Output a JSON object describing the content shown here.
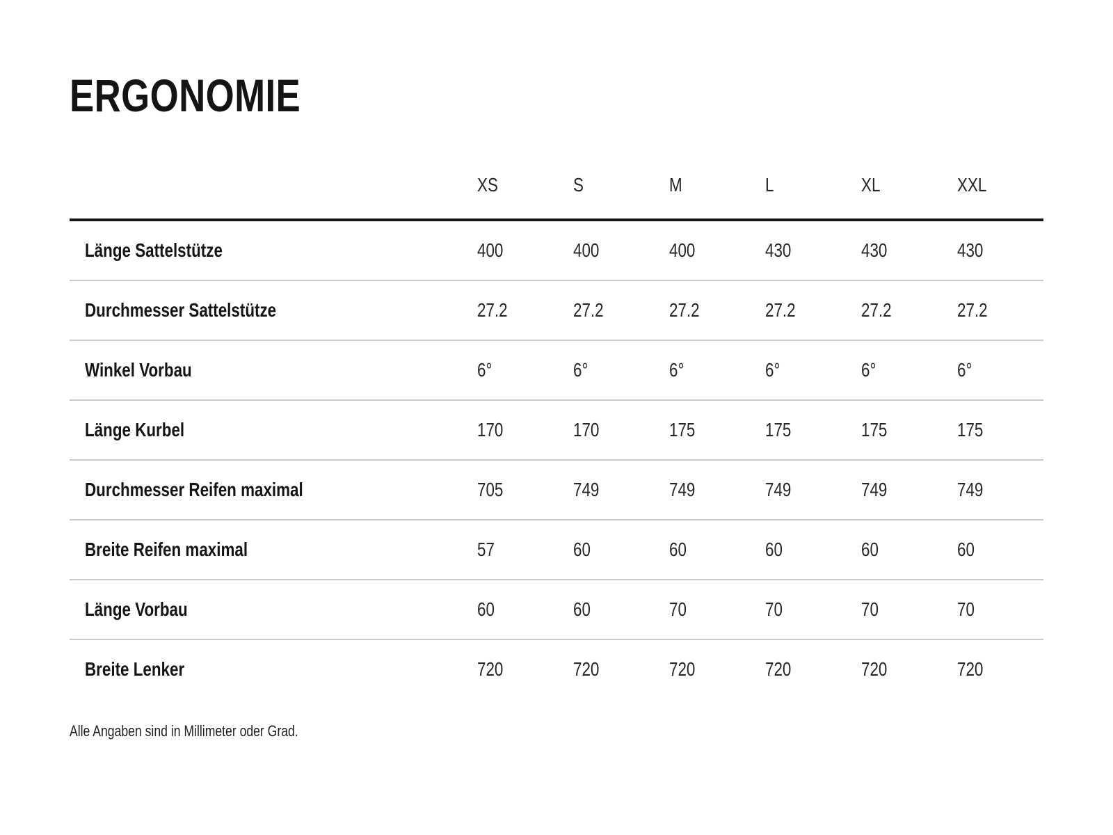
{
  "title": "ERGONOMIE",
  "table": {
    "sizes": [
      "XS",
      "S",
      "M",
      "L",
      "XL",
      "XXL"
    ],
    "rows": [
      {
        "label": "Länge Sattelstütze",
        "values": [
          "400",
          "400",
          "400",
          "430",
          "430",
          "430"
        ]
      },
      {
        "label": "Durchmesser Sattelstütze",
        "values": [
          "27.2",
          "27.2",
          "27.2",
          "27.2",
          "27.2",
          "27.2"
        ]
      },
      {
        "label": "Winkel Vorbau",
        "values": [
          "6°",
          "6°",
          "6°",
          "6°",
          "6°",
          "6°"
        ]
      },
      {
        "label": "Länge Kurbel",
        "values": [
          "170",
          "170",
          "175",
          "175",
          "175",
          "175"
        ]
      },
      {
        "label": "Durchmesser Reifen maximal",
        "values": [
          "705",
          "749",
          "749",
          "749",
          "749",
          "749"
        ]
      },
      {
        "label": "Breite Reifen maximal",
        "values": [
          "57",
          "60",
          "60",
          "60",
          "60",
          "60"
        ]
      },
      {
        "label": "Länge Vorbau",
        "values": [
          "60",
          "60",
          "70",
          "70",
          "70",
          "70"
        ]
      },
      {
        "label": "Breite Lenker",
        "values": [
          "720",
          "720",
          "720",
          "720",
          "720",
          "720"
        ]
      }
    ]
  },
  "footnote": "Alle Angaben sind in Millimeter oder Grad.",
  "colors": {
    "text": "#141414",
    "value_text": "#262626",
    "header_rule": "#141414",
    "row_divider": "#c9c9cd",
    "background": "#ffffff"
  },
  "chart_data": {
    "type": "table",
    "title": "ERGONOMIE",
    "categories": [
      "XS",
      "S",
      "M",
      "L",
      "XL",
      "XXL"
    ],
    "series": [
      {
        "name": "Länge Sattelstütze",
        "values": [
          400,
          400,
          400,
          430,
          430,
          430
        ]
      },
      {
        "name": "Durchmesser Sattelstütze",
        "values": [
          27.2,
          27.2,
          27.2,
          27.2,
          27.2,
          27.2
        ]
      },
      {
        "name": "Winkel Vorbau",
        "values": [
          "6°",
          "6°",
          "6°",
          "6°",
          "6°",
          "6°"
        ]
      },
      {
        "name": "Länge Kurbel",
        "values": [
          170,
          170,
          175,
          175,
          175,
          175
        ]
      },
      {
        "name": "Durchmesser Reifen maximal",
        "values": [
          705,
          749,
          749,
          749,
          749,
          749
        ]
      },
      {
        "name": "Breite Reifen maximal",
        "values": [
          57,
          60,
          60,
          60,
          60,
          60
        ]
      },
      {
        "name": "Länge Vorbau",
        "values": [
          60,
          60,
          70,
          70,
          70,
          70
        ]
      },
      {
        "name": "Breite Lenker",
        "values": [
          720,
          720,
          720,
          720,
          720,
          720
        ]
      }
    ],
    "footnote": "Alle Angaben sind in Millimeter oder Grad.",
    "layout": {
      "header_align": "left",
      "values_align": "left",
      "units": "mm oder Grad"
    }
  }
}
